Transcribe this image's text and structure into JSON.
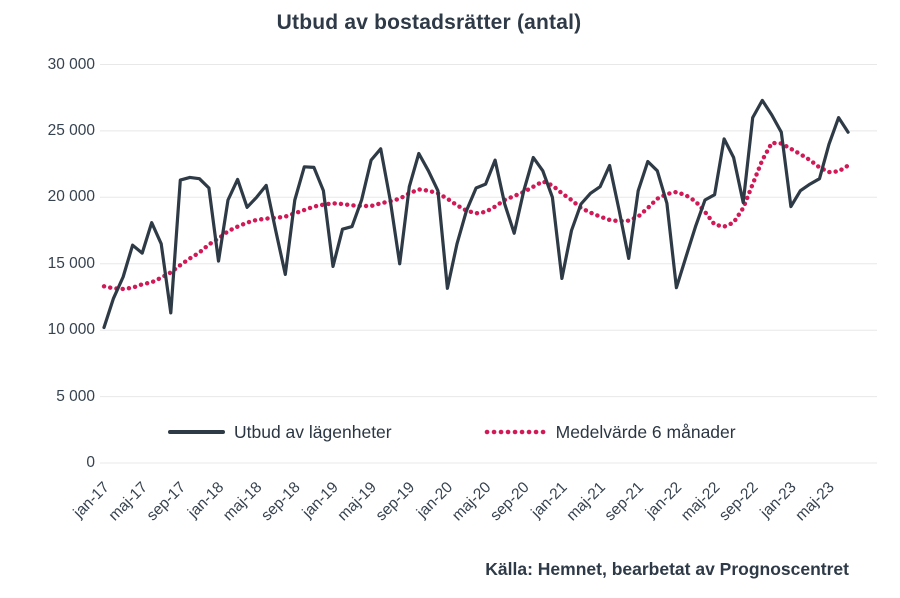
{
  "source_note": "Källa: Hemnet, bearbetat av Prognoscentret",
  "colors": {
    "supply_line": "#2e3a46",
    "average_line": "#d01956",
    "grid": "#e8e8e8",
    "axis_text": "#36424f",
    "title_text": "#2e3a47",
    "background": "#ffffff"
  },
  "chart_data": {
    "type": "line",
    "title": "Utbud av bostadsrätter (antal)",
    "xlabel": "",
    "ylabel": "",
    "ylim": [
      0,
      30000
    ],
    "grid": true,
    "legend_position": "bottom-inside",
    "x": [
      "jan-17",
      "feb-17",
      "mar-17",
      "apr-17",
      "maj-17",
      "jun-17",
      "jul-17",
      "aug-17",
      "sep-17",
      "okt-17",
      "nov-17",
      "dec-17",
      "jan-18",
      "feb-18",
      "mar-18",
      "apr-18",
      "maj-18",
      "jun-18",
      "jul-18",
      "aug-18",
      "sep-18",
      "okt-18",
      "nov-18",
      "dec-18",
      "jan-19",
      "feb-19",
      "mar-19",
      "apr-19",
      "maj-19",
      "jun-19",
      "jul-19",
      "aug-19",
      "sep-19",
      "okt-19",
      "nov-19",
      "dec-19",
      "jan-20",
      "feb-20",
      "mar-20",
      "apr-20",
      "maj-20",
      "jun-20",
      "jul-20",
      "aug-20",
      "sep-20",
      "okt-20",
      "nov-20",
      "dec-20",
      "jan-21",
      "feb-21",
      "mar-21",
      "apr-21",
      "maj-21",
      "jun-21",
      "jul-21",
      "aug-21",
      "sep-21",
      "okt-21",
      "nov-21",
      "dec-21",
      "jan-22",
      "feb-22",
      "mar-22",
      "apr-22",
      "maj-22",
      "jun-22",
      "jul-22",
      "aug-22",
      "sep-22",
      "okt-22",
      "nov-22",
      "dec-22",
      "jan-23",
      "feb-23",
      "mar-23",
      "apr-23",
      "maj-23",
      "jun-23",
      "jul-23"
    ],
    "x_tick_labels": [
      "jan-17",
      "maj-17",
      "sep-17",
      "jan-18",
      "maj-18",
      "sep-18",
      "jan-19",
      "maj-19",
      "sep-19",
      "jan-20",
      "maj-20",
      "sep-20",
      "jan-21",
      "maj-21",
      "sep-21",
      "jan-22",
      "maj-22",
      "sep-22",
      "jan-23",
      "maj-23"
    ],
    "y_ticks": [
      {
        "label": "30 000",
        "value": 30000
      },
      {
        "label": "25 000",
        "value": 25000
      },
      {
        "label": "20 000",
        "value": 20000
      },
      {
        "label": "15 000",
        "value": 15000
      },
      {
        "label": "10 000",
        "value": 10000
      },
      {
        "label": "5 000",
        "value": 5000
      },
      {
        "label": "0",
        "value": 0
      }
    ],
    "series": [
      {
        "name": "Utbud av lägenheter",
        "style": "solid",
        "color": "#2e3a46",
        "values": [
          10200,
          12400,
          14000,
          16400,
          15800,
          18100,
          16500,
          11300,
          21300,
          21500,
          21400,
          20700,
          15200,
          19800,
          21350,
          19250,
          20000,
          20900,
          17500,
          14200,
          19800,
          22300,
          22250,
          20500,
          14800,
          17600,
          17800,
          19800,
          22800,
          23650,
          19800,
          15000,
          20800,
          23300,
          22000,
          20500,
          13150,
          16500,
          19000,
          20700,
          21000,
          22800,
          19500,
          17300,
          20500,
          23000,
          22000,
          20000,
          13900,
          17500,
          19500,
          20300,
          20800,
          22400,
          19000,
          15400,
          20500,
          22700,
          22000,
          19550,
          13200,
          15500,
          17800,
          19800,
          20200,
          24400,
          23000,
          19600,
          26000,
          27300,
          26200,
          24900,
          19300,
          20500,
          21000,
          21400,
          24000,
          26000,
          24900
        ]
      },
      {
        "name": "Medelvärde 6 månader",
        "style": "dotted",
        "color": "#d01956",
        "values": [
          13300,
          13150,
          13100,
          13200,
          13450,
          13600,
          13950,
          14350,
          14900,
          15400,
          15850,
          16450,
          16900,
          17450,
          17800,
          18100,
          18300,
          18400,
          18450,
          18550,
          18800,
          19050,
          19300,
          19450,
          19550,
          19500,
          19400,
          19350,
          19350,
          19550,
          19700,
          19900,
          20300,
          20600,
          20500,
          20300,
          19900,
          19400,
          19000,
          18800,
          18900,
          19300,
          19800,
          20100,
          20400,
          20800,
          21200,
          20900,
          20300,
          19800,
          19200,
          18850,
          18550,
          18300,
          18200,
          18250,
          18550,
          19200,
          19900,
          20250,
          20400,
          20150,
          19700,
          18900,
          17950,
          17800,
          18100,
          19200,
          21000,
          22800,
          24100,
          24050,
          23650,
          23250,
          22800,
          22250,
          21900,
          21950,
          22400
        ]
      }
    ]
  }
}
